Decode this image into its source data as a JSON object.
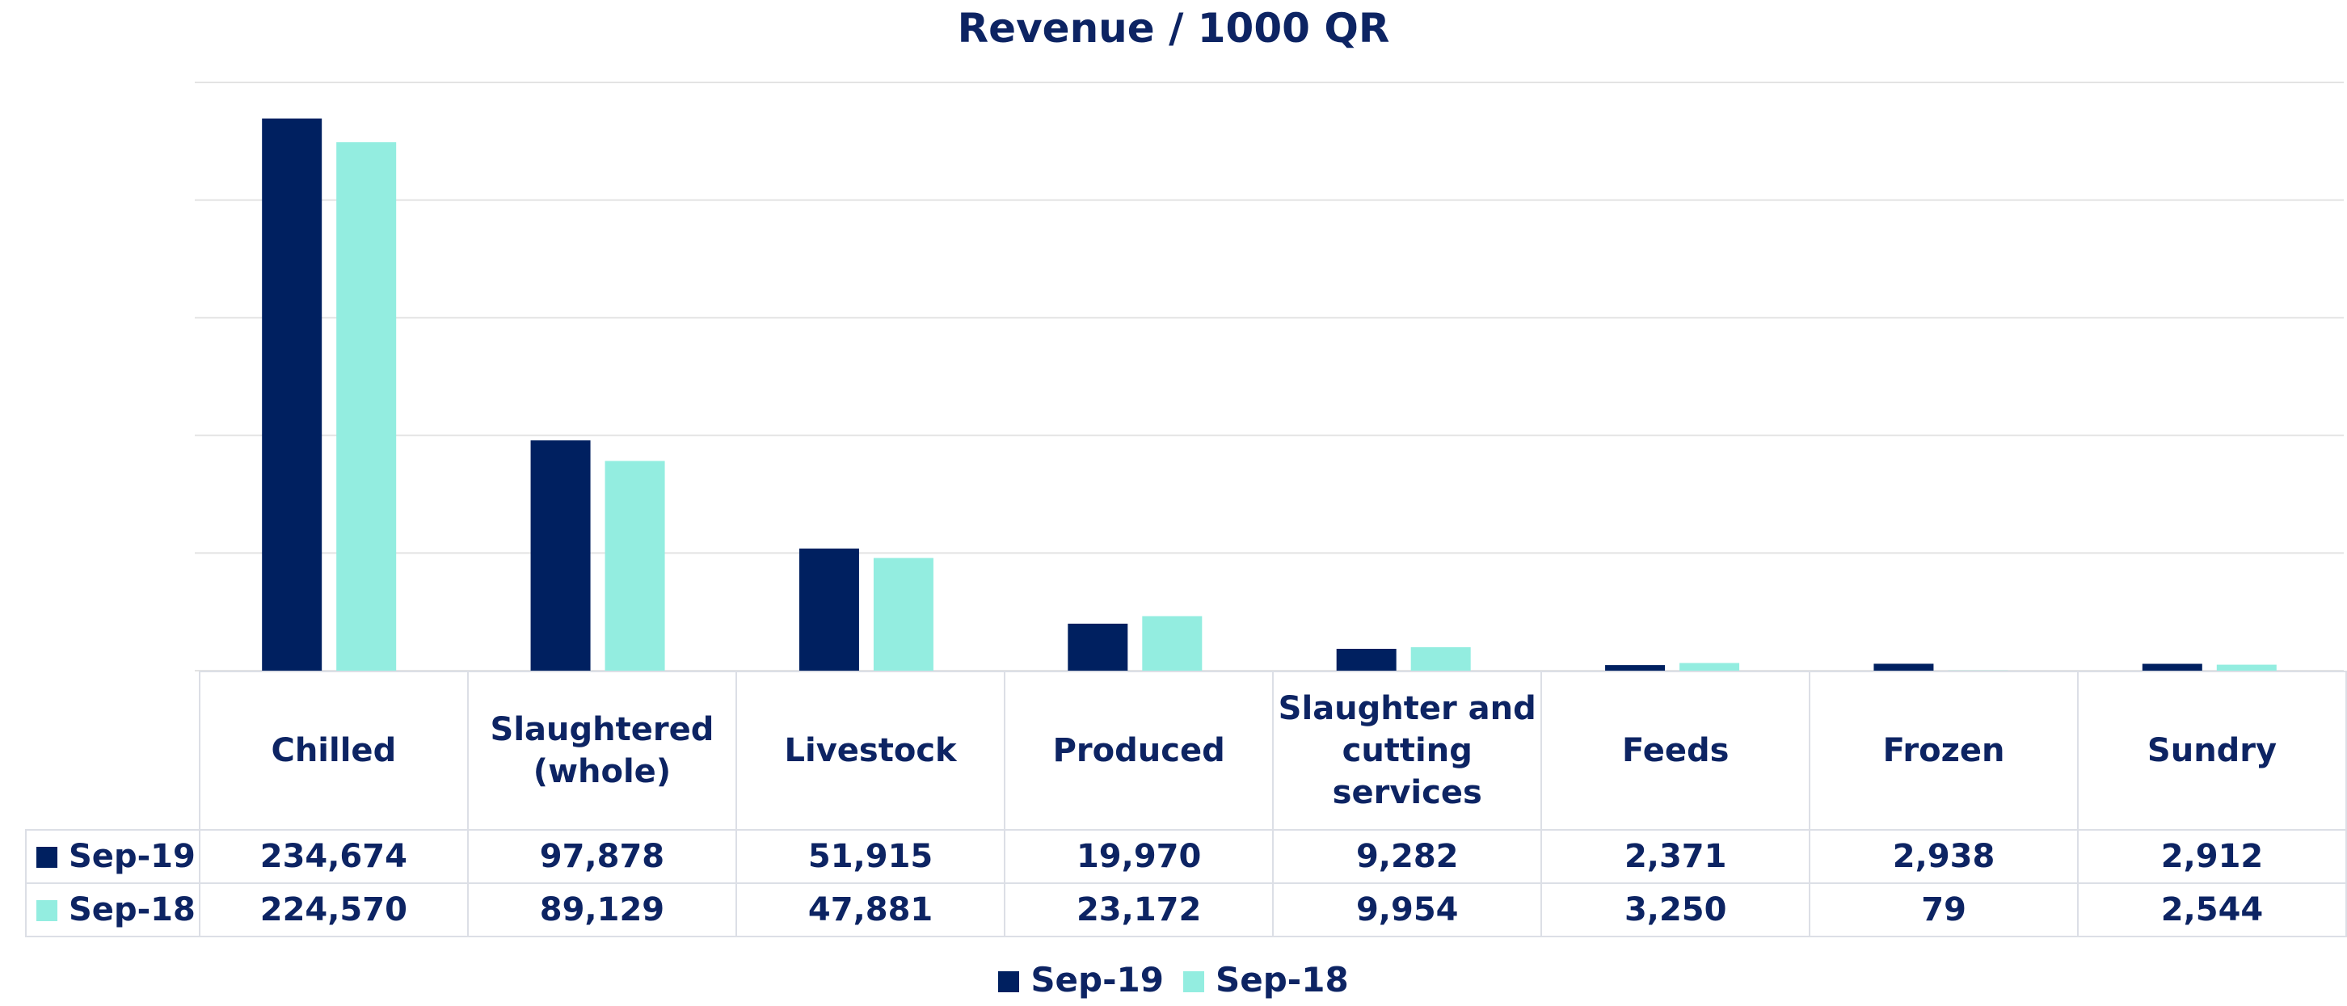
{
  "chart_data": {
    "type": "bar",
    "title": "Revenue / 1000 QR",
    "categories": [
      "Chilled",
      "Slaughtered (whole)",
      "Livestock",
      "Produced",
      "Slaughter and cutting services",
      "Feeds",
      "Frozen",
      "Sundry"
    ],
    "series": [
      {
        "name": "Sep-19",
        "color": "#002060",
        "values": [
          234674,
          97878,
          51915,
          19970,
          9282,
          2371,
          2938,
          2912
        ],
        "value_labels": [
          "234,674",
          "97,878",
          "51,915",
          "19,970",
          "9,282",
          "2,371",
          "2,938",
          "2,912"
        ]
      },
      {
        "name": "Sep-18",
        "color": "#93ede0",
        "values": [
          224570,
          89129,
          47881,
          23172,
          9954,
          3250,
          79,
          2544
        ],
        "value_labels": [
          "224,570",
          "89,129",
          "47,881",
          "23,172",
          "9,954",
          "3,250",
          "79",
          "2,544"
        ]
      }
    ],
    "ylim": [
      0,
      250000
    ],
    "yticks": [
      0,
      50000,
      100000,
      150000,
      200000,
      250000
    ],
    "grid": true
  }
}
